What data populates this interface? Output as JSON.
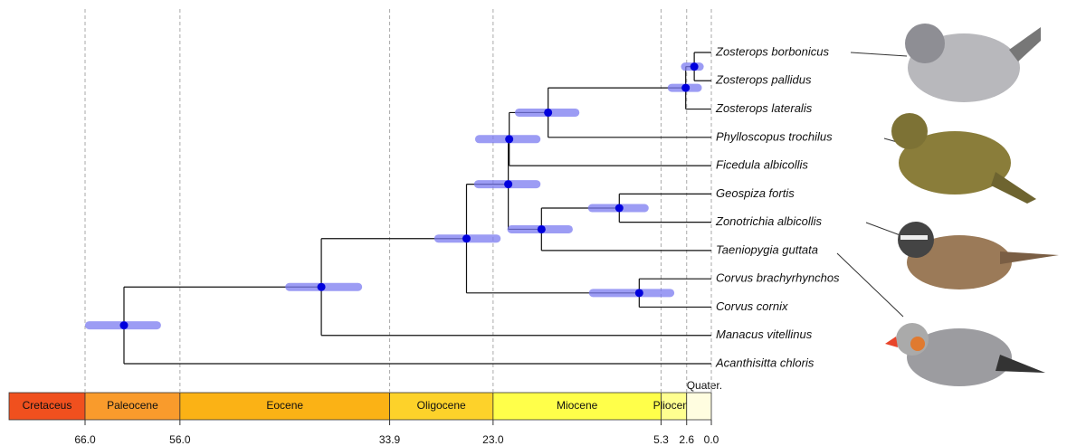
{
  "tree": {
    "age": 61.9,
    "ci": [
      66.0,
      58.0
    ],
    "children": [
      {
        "age": 41.1,
        "ci": [
          44.9,
          36.8
        ],
        "children": [
          {
            "age": 25.8,
            "ci": [
              29.2,
              22.2
            ],
            "children": [
              {
                "age": 21.4,
                "ci": [
                  25.0,
                  18.0
                ],
                "children": [
                  {
                    "age": 21.3,
                    "ci": [
                      24.9,
                      18.0
                    ],
                    "children": [
                      {
                        "age": 17.2,
                        "ci": [
                          20.7,
                          13.9
                        ],
                        "children": [
                          {
                            "age": 2.7,
                            "ci": [
                              4.6,
                              1.0
                            ],
                            "children": [
                              {
                                "age": 1.8,
                                "ci": [
                                  3.2,
                                  0.8
                                ],
                                "children": [
                                  {
                                    "label": "Zosterops borbonicus"
                                  },
                                  {
                                    "label": "Zosterops pallidus"
                                  }
                                ]
                              },
                              {
                                "label": "Zosterops lateralis"
                              }
                            ]
                          },
                          {
                            "label": "Phylloscopus trochilus"
                          }
                        ]
                      },
                      {
                        "label": "Ficedula albicollis"
                      }
                    ]
                  },
                  {
                    "age": 17.9,
                    "ci": [
                      21.5,
                      14.6
                    ],
                    "children": [
                      {
                        "age": 9.7,
                        "ci": [
                          13.0,
                          6.6
                        ],
                        "children": [
                          {
                            "label": "Geospiza fortis"
                          },
                          {
                            "label": "Zonotrichia albicollis"
                          }
                        ]
                      },
                      {
                        "label": "Taeniopygia guttata"
                      }
                    ]
                  }
                ]
              },
              {
                "age": 7.6,
                "ci": [
                  12.9,
                  3.9
                ],
                "children": [
                  {
                    "label": "Corvus brachyrhynchos"
                  },
                  {
                    "label": "Corvus cornix"
                  }
                ]
              }
            ]
          },
          {
            "label": "Manacus vitellinus"
          }
        ]
      },
      {
        "label": "Acanthisitta chloris"
      }
    ]
  },
  "time_axis": {
    "xlim": [
      66.0,
      0.0
    ],
    "xticks": [
      {
        "value": 66.0,
        "label": "66.0"
      },
      {
        "value": 56.0,
        "label": "56.0"
      },
      {
        "value": 33.9,
        "label": "33.9"
      },
      {
        "value": 23.0,
        "label": "23.0"
      },
      {
        "value": 5.3,
        "label": "5.3"
      },
      {
        "value": 2.6,
        "label": "2.6"
      },
      {
        "value": 0.0,
        "label": "0.0"
      }
    ],
    "epochs": [
      {
        "name": "Cretaceus",
        "color": "#f0501e"
      },
      {
        "name": "Paleocene",
        "color": "#f99b2c"
      },
      {
        "name": "Eocene",
        "color": "#fbb215"
      },
      {
        "name": "Oligocene",
        "color": "#fdd22a"
      },
      {
        "name": "Miocene",
        "color": "#ffff4a"
      },
      {
        "name": "Pliocene",
        "color": "#ffff90"
      },
      {
        "name": "Quater.",
        "color": "#fffde0"
      }
    ]
  }
}
